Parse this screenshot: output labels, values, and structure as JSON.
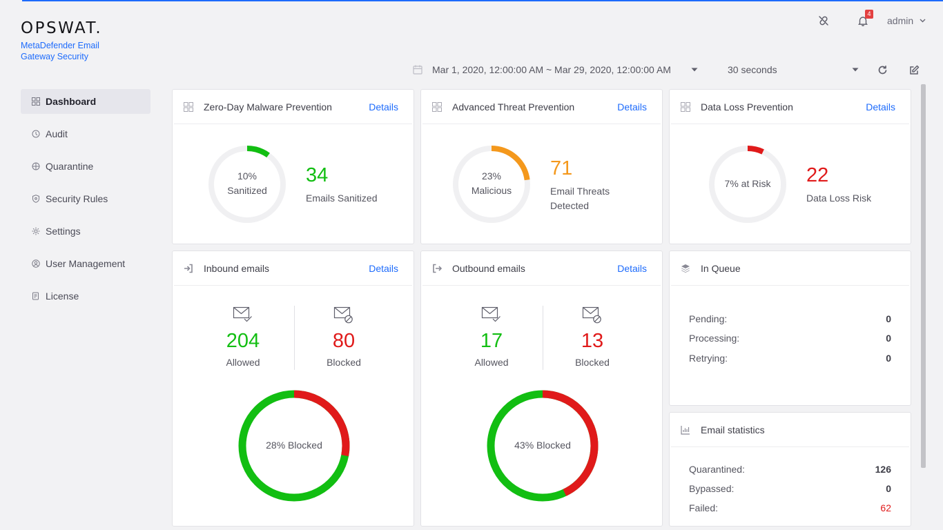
{
  "brand": {
    "logo": "OPSWAT.",
    "subtitle": "MetaDefender Email Gateway Security"
  },
  "header": {
    "notifications_count": "4",
    "user": "admin"
  },
  "toolbar": {
    "date_range": "Mar 1, 2020, 12:00:00 AM ~ Mar 29, 2020, 12:00:00 AM",
    "refresh_interval": "30 seconds"
  },
  "nav": [
    {
      "label": "Dashboard",
      "icon": "grid-icon",
      "active": true
    },
    {
      "label": "Audit",
      "icon": "audit-icon"
    },
    {
      "label": "Quarantine",
      "icon": "quarantine-icon"
    },
    {
      "label": "Security Rules",
      "icon": "shield-icon"
    },
    {
      "label": "Settings",
      "icon": "gear-icon"
    },
    {
      "label": "User Management",
      "icon": "user-icon"
    },
    {
      "label": "License",
      "icon": "license-icon"
    }
  ],
  "colors": {
    "green": "#12be12",
    "red": "#e01a1a",
    "orange": "#f4981c",
    "accent": "#1d6bfc",
    "track": "#f0f0f2"
  },
  "cards": {
    "zero_day": {
      "title": "Zero-Day Malware Prevention",
      "details": "Details",
      "ring_pct": "10%",
      "ring_label": "Sanitized",
      "ring_fraction": 0.1,
      "value": "34",
      "label": "Emails Sanitized"
    },
    "atp": {
      "title": "Advanced Threat Prevention",
      "details": "Details",
      "ring_pct": "23%",
      "ring_label": "Malicious",
      "ring_fraction": 0.23,
      "value": "71",
      "label_line1": "Email Threats",
      "label_line2": "Detected"
    },
    "dlp": {
      "title": "Data Loss Prevention",
      "details": "Details",
      "ring_text": "7% at Risk",
      "ring_fraction": 0.07,
      "value": "22",
      "label": "Data Loss Risk"
    },
    "inbound": {
      "title": "Inbound emails",
      "details": "Details",
      "allowed": "204",
      "allowed_label": "Allowed",
      "blocked": "80",
      "blocked_label": "Blocked",
      "ring_text": "28% Blocked",
      "blocked_fraction": 0.28
    },
    "outbound": {
      "title": "Outbound emails",
      "details": "Details",
      "allowed": "17",
      "allowed_label": "Allowed",
      "blocked": "13",
      "blocked_label": "Blocked",
      "ring_text": "43% Blocked",
      "blocked_fraction": 0.43
    },
    "queue": {
      "title": "In Queue",
      "rows": [
        {
          "label": "Pending:",
          "value": "0"
        },
        {
          "label": "Processing:",
          "value": "0"
        },
        {
          "label": "Retrying:",
          "value": "0"
        }
      ]
    },
    "stats": {
      "title": "Email statistics",
      "rows": [
        {
          "label": "Quarantined:",
          "value": "126"
        },
        {
          "label": "Bypassed:",
          "value": "0"
        },
        {
          "label": "Failed:",
          "value": "62"
        }
      ]
    }
  }
}
